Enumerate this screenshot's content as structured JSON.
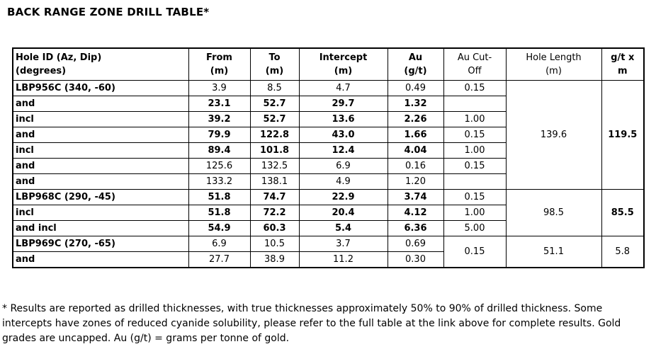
{
  "title": "BACK RANGE ZONE DRILL TABLE*",
  "table": {
    "columns": [
      {
        "key": "hole-id",
        "lines": [
          "Hole ID (Az, Dip)",
          "(degrees)"
        ],
        "bold": true,
        "align": "left"
      },
      {
        "key": "from",
        "lines": [
          "From",
          "(m)"
        ],
        "bold": true,
        "align": "center"
      },
      {
        "key": "to",
        "lines": [
          "To",
          "(m)"
        ],
        "bold": true,
        "align": "center"
      },
      {
        "key": "intercept",
        "lines": [
          "Intercept",
          "(m)"
        ],
        "bold": true,
        "align": "center"
      },
      {
        "key": "au",
        "lines": [
          "Au",
          "(g/t)"
        ],
        "bold": true,
        "align": "center"
      },
      {
        "key": "au-cutoff",
        "lines": [
          "Au Cut-",
          "Off"
        ],
        "bold": false,
        "align": "center"
      },
      {
        "key": "hole-length",
        "lines": [
          "Hole Length",
          "(m)"
        ],
        "bold": false,
        "align": "center"
      },
      {
        "key": "gt-x-m",
        "lines": [
          "g/t x",
          "m"
        ],
        "bold": true,
        "align": "center"
      }
    ],
    "rows": [
      {
        "cells": [
          {
            "t": "LBP956C (340, -60)",
            "label": true
          },
          {
            "t": "3.9"
          },
          {
            "t": "8.5"
          },
          {
            "t": "4.7"
          },
          {
            "t": "0.49"
          },
          {
            "t": "0.15"
          },
          {
            "t": "139.6",
            "rs": 7
          },
          {
            "t": "119.5",
            "rs": 7,
            "b": true
          }
        ]
      },
      {
        "cells": [
          {
            "t": "and",
            "label": true
          },
          {
            "t": "23.1",
            "b": true
          },
          {
            "t": "52.7",
            "b": true
          },
          {
            "t": "29.7",
            "b": true
          },
          {
            "t": "1.32",
            "b": true
          },
          {
            "t": ""
          }
        ]
      },
      {
        "cells": [
          {
            "t": "incl",
            "label": true
          },
          {
            "t": "39.2",
            "b": true
          },
          {
            "t": "52.7",
            "b": true
          },
          {
            "t": "13.6",
            "b": true
          },
          {
            "t": "2.26",
            "b": true
          },
          {
            "t": "1.00"
          }
        ]
      },
      {
        "cells": [
          {
            "t": "and",
            "label": true
          },
          {
            "t": "79.9",
            "b": true
          },
          {
            "t": "122.8",
            "b": true
          },
          {
            "t": "43.0",
            "b": true
          },
          {
            "t": "1.66",
            "b": true
          },
          {
            "t": "0.15"
          }
        ]
      },
      {
        "cells": [
          {
            "t": "incl",
            "label": true
          },
          {
            "t": "89.4",
            "b": true
          },
          {
            "t": "101.8",
            "b": true
          },
          {
            "t": "12.4",
            "b": true
          },
          {
            "t": "4.04",
            "b": true
          },
          {
            "t": "1.00"
          }
        ]
      },
      {
        "cells": [
          {
            "t": "and",
            "label": true
          },
          {
            "t": "125.6"
          },
          {
            "t": "132.5"
          },
          {
            "t": "6.9"
          },
          {
            "t": "0.16"
          },
          {
            "t": "0.15"
          }
        ]
      },
      {
        "cells": [
          {
            "t": "and",
            "label": true
          },
          {
            "t": "133.2"
          },
          {
            "t": "138.1"
          },
          {
            "t": "4.9"
          },
          {
            "t": "1.20"
          },
          {
            "t": ""
          }
        ]
      },
      {
        "cells": [
          {
            "t": "LBP968C (290, -45)",
            "label": true
          },
          {
            "t": "51.8",
            "b": true
          },
          {
            "t": "74.7",
            "b": true
          },
          {
            "t": "22.9",
            "b": true
          },
          {
            "t": "3.74",
            "b": true
          },
          {
            "t": "0.15"
          },
          {
            "t": "98.5",
            "rs": 3
          },
          {
            "t": "85.5",
            "rs": 3,
            "b": true
          }
        ]
      },
      {
        "cells": [
          {
            "t": "incl",
            "label": true
          },
          {
            "t": "51.8",
            "b": true
          },
          {
            "t": "72.2",
            "b": true
          },
          {
            "t": "20.4",
            "b": true
          },
          {
            "t": "4.12",
            "b": true
          },
          {
            "t": "1.00"
          }
        ]
      },
      {
        "cells": [
          {
            "t": "and incl",
            "label": true
          },
          {
            "t": "54.9",
            "b": true
          },
          {
            "t": "60.3",
            "b": true
          },
          {
            "t": "5.4",
            "b": true
          },
          {
            "t": "6.36",
            "b": true
          },
          {
            "t": "5.00"
          }
        ]
      },
      {
        "cells": [
          {
            "t": "LBP969C (270, -65)",
            "label": true
          },
          {
            "t": "6.9"
          },
          {
            "t": "10.5"
          },
          {
            "t": "3.7"
          },
          {
            "t": "0.69"
          },
          {
            "t": "0.15",
            "rs": 2
          },
          {
            "t": "51.1",
            "rs": 2
          },
          {
            "t": "5.8",
            "rs": 2
          }
        ]
      },
      {
        "cells": [
          {
            "t": "and",
            "label": true
          },
          {
            "t": "27.7"
          },
          {
            "t": "38.9"
          },
          {
            "t": "11.2"
          },
          {
            "t": "0.30"
          }
        ]
      }
    ]
  },
  "footnote": "* Results are reported as drilled thicknesses, with true thicknesses approximately 50% to 90% of drilled thickness. Some intercepts have zones of reduced cyanide solubility, please refer to the full table at the link above for complete results. Gold grades are uncapped. Au (g/t) = grams per tonne of gold."
}
